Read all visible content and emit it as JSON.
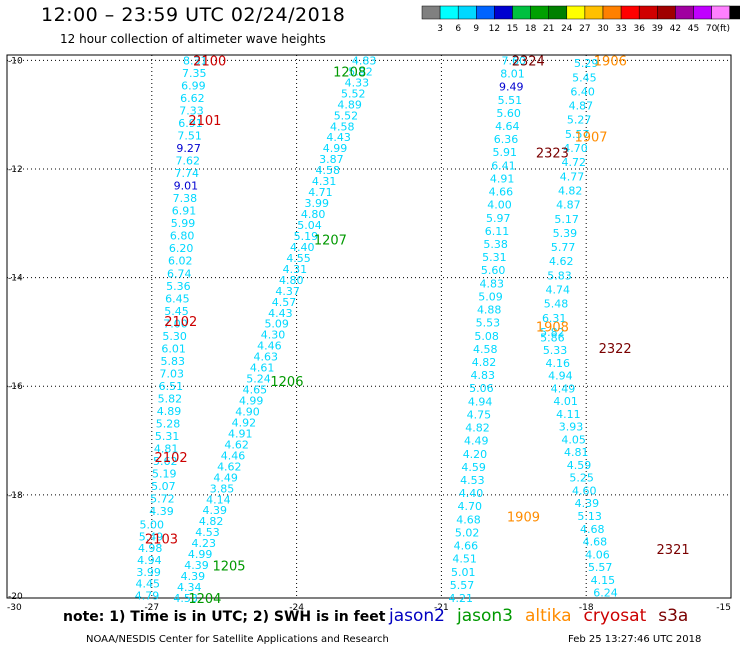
{
  "header": {
    "title": "12:00 – 23:59 UTC 02/24/2018",
    "subtitle": "12 hour collection of altimeter wave heights"
  },
  "colorbar": {
    "unit": "(ft)",
    "labels": [
      "3",
      "6",
      "9",
      "12",
      "15",
      "18",
      "21",
      "24",
      "27",
      "30",
      "33",
      "36",
      "39",
      "42",
      "45",
      "70"
    ],
    "colors": [
      "#808080",
      "#00ffff",
      "#00d8ff",
      "#0064ff",
      "#0000d0",
      "#00c040",
      "#00a000",
      "#008000",
      "#ffff00",
      "#ffc000",
      "#ff8000",
      "#ff0000",
      "#d00000",
      "#a00000",
      "#a000a0",
      "#c000ff",
      "#ff80ff",
      "#000000"
    ]
  },
  "axes": {
    "y_labels": [
      "-10",
      "-12",
      "-14",
      "-16",
      "-18",
      "-20"
    ],
    "y_values": [
      -10,
      -12,
      -14,
      -16,
      -18,
      -20
    ],
    "x_labels": [
      "-30",
      "-27",
      "-24",
      "-21",
      "-18",
      "-15"
    ],
    "x_values": [
      -30,
      -27,
      -24,
      -21,
      -18,
      -15
    ]
  },
  "satellites": [
    {
      "name": "jason2",
      "color": "#0000c0"
    },
    {
      "name": "jason3",
      "color": "#009900"
    },
    {
      "name": "altika",
      "color": "#ff8c00"
    },
    {
      "name": "cryosat",
      "color": "#cc0000"
    },
    {
      "name": "s3a",
      "color": "#7a0000"
    }
  ],
  "pass_labels": [
    {
      "text": "2100",
      "lon": -25.8,
      "lat": -10.0,
      "sat": "cryosat"
    },
    {
      "text": "2101",
      "lon": -25.9,
      "lat": -11.1,
      "sat": "cryosat"
    },
    {
      "text": "2102",
      "lon": -26.4,
      "lat": -14.8,
      "sat": "cryosat"
    },
    {
      "text": "2102",
      "lon": -26.6,
      "lat": -17.3,
      "sat": "cryosat"
    },
    {
      "text": "2103",
      "lon": -26.8,
      "lat": -18.8,
      "sat": "cryosat"
    },
    {
      "text": "1208",
      "lon": -22.9,
      "lat": -10.2,
      "sat": "jason3"
    },
    {
      "text": "1207",
      "lon": -23.3,
      "lat": -13.3,
      "sat": "jason3"
    },
    {
      "text": "1206",
      "lon": -24.2,
      "lat": -15.9,
      "sat": "jason3"
    },
    {
      "text": "1205",
      "lon": -25.4,
      "lat": -19.3,
      "sat": "jason3"
    },
    {
      "text": "1204",
      "lon": -25.9,
      "lat": -19.9,
      "sat": "jason3"
    },
    {
      "text": "2324",
      "lon": -19.2,
      "lat": -10.0,
      "sat": "s3a"
    },
    {
      "text": "1906",
      "lon": -17.5,
      "lat": -10.0,
      "sat": "altika"
    },
    {
      "text": "1907",
      "lon": -17.9,
      "lat": -11.4,
      "sat": "altika"
    },
    {
      "text": "2323",
      "lon": -18.7,
      "lat": -11.7,
      "sat": "s3a"
    },
    {
      "text": "1908",
      "lon": -18.7,
      "lat": -14.9,
      "sat": "altika"
    },
    {
      "text": "2322",
      "lon": -17.4,
      "lat": -15.3,
      "sat": "s3a"
    },
    {
      "text": "1909",
      "lon": -19.3,
      "lat": -18.4,
      "sat": "altika"
    },
    {
      "text": "2321",
      "lon": -16.2,
      "lat": -19.0,
      "sat": "s3a"
    }
  ],
  "tracks": [
    {
      "x0": -26.1,
      "x1": -26.8,
      "y0": -10.0,
      "y1": -18.3,
      "values": [
        "8.31",
        "7.35",
        "6.99",
        "6.62",
        "7.33",
        "6.91",
        "7.51",
        "9.27",
        "7.62",
        "7.74",
        "9.01",
        "7.38",
        "6.91",
        "5.99",
        "6.80",
        "6.20",
        "6.02",
        "6.74",
        "5.36",
        "6.45",
        "5.45",
        "7.00",
        "5.30",
        "6.01",
        "5.83",
        "7.03",
        "6.51",
        "5.82",
        "4.89",
        "5.28",
        "5.31",
        "4.81",
        "5.62",
        "5.19",
        "5.07",
        "5.72",
        "4.39"
      ]
    },
    {
      "x0": -27.0,
      "x1": -27.1,
      "y0": -18.55,
      "y1": -19.85,
      "values": [
        "5.00",
        "5.49",
        "4.98",
        "4.94",
        "3.99",
        "4.45",
        "4.79"
      ]
    },
    {
      "x0": -22.6,
      "x1": -26.3,
      "y0": -10.0,
      "y1": -19.9,
      "values": [
        "4.83",
        "5.92",
        "4.33",
        "5.52",
        "4.89",
        "5.52",
        "4.58",
        "4.43",
        "4.99",
        "3.87",
        "4.58",
        "4.31",
        "4.71",
        "3.99",
        "4.80",
        "5.04",
        "5.19",
        "4.40",
        "4.55",
        "4.31",
        "4.80",
        "4.37",
        "4.57",
        "4.43",
        "5.09",
        "4.30",
        "4.46",
        "4.63",
        "4.61",
        "5.24",
        "4.65",
        "4.99",
        "4.90",
        "4.92",
        "4.91",
        "4.62",
        "4.46",
        "4.62",
        "4.49",
        "3.85",
        "4.14",
        "4.39",
        "4.82",
        "4.53",
        "4.23",
        "4.99",
        "4.39",
        "4.39",
        "4.34",
        "4.53"
      ]
    },
    {
      "x0": -19.5,
      "x1": -20.6,
      "y0": -10.0,
      "y1": -19.9,
      "values": [
        "7.60",
        "8.01",
        "9.49",
        "5.51",
        "5.60",
        "4.64",
        "6.36",
        "5.91",
        "6.41",
        "4.91",
        "4.66",
        "4.00",
        "5.97",
        "6.11",
        "5.38",
        "5.31",
        "5.60",
        "4.83",
        "5.09",
        "4.88",
        "5.53",
        "5.08",
        "4.58",
        "4.82",
        "4.83",
        "5.06",
        "4.94",
        "4.75",
        "4.82",
        "4.49",
        "4.20",
        "4.59",
        "4.53",
        "4.40",
        "4.70",
        "4.68",
        "5.02",
        "4.66",
        "4.51",
        "5.01",
        "5.57",
        "4.21"
      ]
    },
    {
      "x0": -18.0,
      "x1": -18.7,
      "y0": -10.05,
      "y1": -15.0,
      "values": [
        "5.29",
        "5.45",
        "6.40",
        "4.87",
        "5.27",
        "5.57",
        "4.70",
        "4.72",
        "4.77",
        "4.82",
        "4.87",
        "5.17",
        "5.39",
        "5.77",
        "4.62",
        "5.83",
        "4.74",
        "5.48",
        "6.31",
        "5.82"
      ]
    },
    {
      "x0": -18.7,
      "x1": -17.6,
      "y0": -15.1,
      "y1": -19.8,
      "values": [
        "5.86",
        "5.33",
        "4.16",
        "4.94",
        "4.49",
        "4.01",
        "4.11",
        "3.93",
        "4.05",
        "4.81",
        "4.59",
        "5.25",
        "4.60",
        "4.39",
        "5.13",
        "4.68",
        "4.68",
        "4.06",
        "5.57",
        "4.15",
        "6.24"
      ]
    }
  ],
  "footer": {
    "note": "note: 1) Time is in UTC; 2) SWH is in feet",
    "credit": "NOAA/NESDIS Center for Satellite Applications and Research",
    "timestamp": "Feb 25 13:27:46 UTC 2018"
  }
}
